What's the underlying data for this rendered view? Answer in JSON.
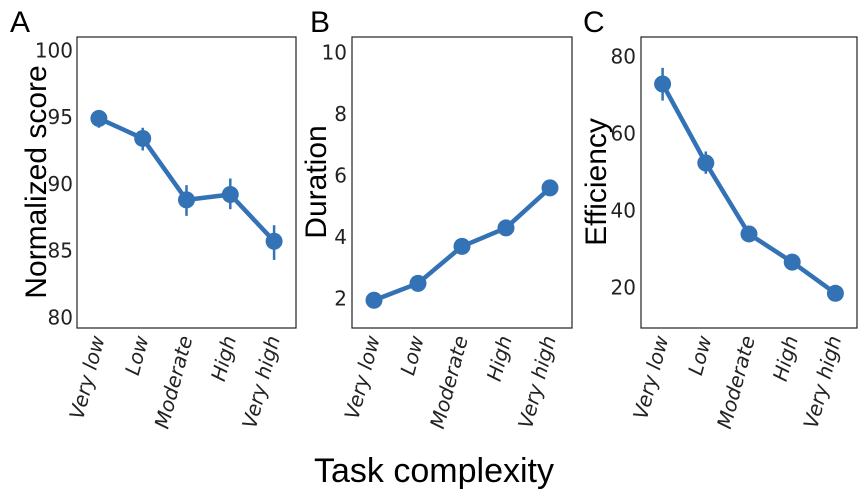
{
  "xlabel": "Task complexity",
  "series_color": "#3272b5",
  "chart_data": [
    {
      "type": "line",
      "panel": "A",
      "ylabel": "Normalized score",
      "categories": [
        "Very low",
        "Low",
        "Moderate",
        "High",
        "Very high"
      ],
      "values": [
        94.9,
        93.4,
        88.8,
        89.2,
        85.7
      ],
      "err_low": [
        94.2,
        92.5,
        87.6,
        88.1,
        84.3
      ],
      "err_high": [
        95.4,
        94.2,
        89.9,
        90.4,
        86.9
      ],
      "ylim": [
        79.2,
        101
      ],
      "yticks": [
        80,
        85,
        90,
        95,
        100
      ],
      "grid": false
    },
    {
      "type": "line",
      "panel": "B",
      "ylabel": "Duration",
      "categories": [
        "Very low",
        "Low",
        "Moderate",
        "High",
        "Very high"
      ],
      "values": [
        1.95,
        2.5,
        3.7,
        4.3,
        5.6
      ],
      "err_low": [
        1.85,
        2.38,
        3.55,
        4.15,
        5.45
      ],
      "err_high": [
        2.05,
        2.62,
        3.85,
        4.45,
        5.75
      ],
      "ylim": [
        1.05,
        10.5
      ],
      "yticks": [
        2,
        4,
        6,
        8,
        10
      ],
      "grid": false
    },
    {
      "type": "line",
      "panel": "C",
      "ylabel": "Efficiency",
      "categories": [
        "Very low",
        "Low",
        "Moderate",
        "High",
        "Very high"
      ],
      "values": [
        72.8,
        52.3,
        33.9,
        26.6,
        18.5
      ],
      "err_low": [
        68.5,
        49.5,
        32.3,
        25.3,
        17.3
      ],
      "err_high": [
        77,
        55.3,
        35.5,
        27.9,
        19.7
      ],
      "ylim": [
        9.5,
        85
      ],
      "yticks": [
        20,
        40,
        60,
        80
      ],
      "grid": false
    }
  ]
}
